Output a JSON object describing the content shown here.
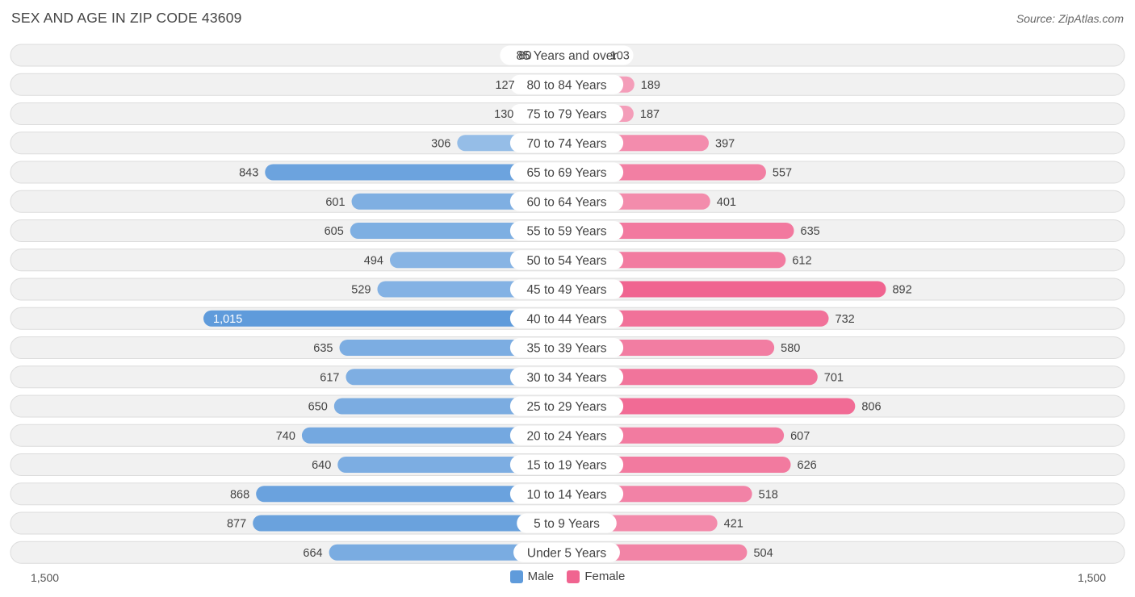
{
  "title": "SEX AND AGE IN ZIP CODE 43609",
  "source": "Source: ZipAtlas.com",
  "colors": {
    "male_light": "#a9c9ec",
    "male_dark": "#5f9bdb",
    "female_light": "#f5a9c1",
    "female_dark": "#f06490",
    "row_bg": "#f1f1f1",
    "row_border": "#dcdcdc"
  },
  "legend": {
    "male": "Male",
    "female": "Female"
  },
  "axis": {
    "left_label": "1,500",
    "right_label": "1,500"
  },
  "chart_data": {
    "type": "bar",
    "orientation": "horizontal-diverging",
    "xlim": [
      -1500,
      1500
    ],
    "categories": [
      "85 Years and over",
      "80 to 84 Years",
      "75 to 79 Years",
      "70 to 74 Years",
      "65 to 69 Years",
      "60 to 64 Years",
      "55 to 59 Years",
      "50 to 54 Years",
      "45 to 49 Years",
      "40 to 44 Years",
      "35 to 39 Years",
      "30 to 34 Years",
      "25 to 29 Years",
      "20 to 24 Years",
      "15 to 19 Years",
      "10 to 14 Years",
      "5 to 9 Years",
      "Under 5 Years"
    ],
    "series": [
      {
        "name": "Male",
        "values": [
          80,
          127,
          130,
          306,
          843,
          601,
          605,
          494,
          529,
          1015,
          635,
          617,
          650,
          740,
          640,
          868,
          877,
          664
        ],
        "labels": [
          "80",
          "127",
          "130",
          "306",
          "843",
          "601",
          "605",
          "494",
          "529",
          "1,015",
          "635",
          "617",
          "650",
          "740",
          "640",
          "868",
          "877",
          "664"
        ]
      },
      {
        "name": "Female",
        "values": [
          103,
          189,
          187,
          397,
          557,
          401,
          635,
          612,
          892,
          732,
          580,
          701,
          806,
          607,
          626,
          518,
          421,
          504
        ],
        "labels": [
          "103",
          "189",
          "187",
          "397",
          "557",
          "401",
          "635",
          "612",
          "892",
          "732",
          "580",
          "701",
          "806",
          "607",
          "626",
          "518",
          "421",
          "504"
        ]
      }
    ],
    "legend_position": "bottom-center",
    "grid": false
  }
}
